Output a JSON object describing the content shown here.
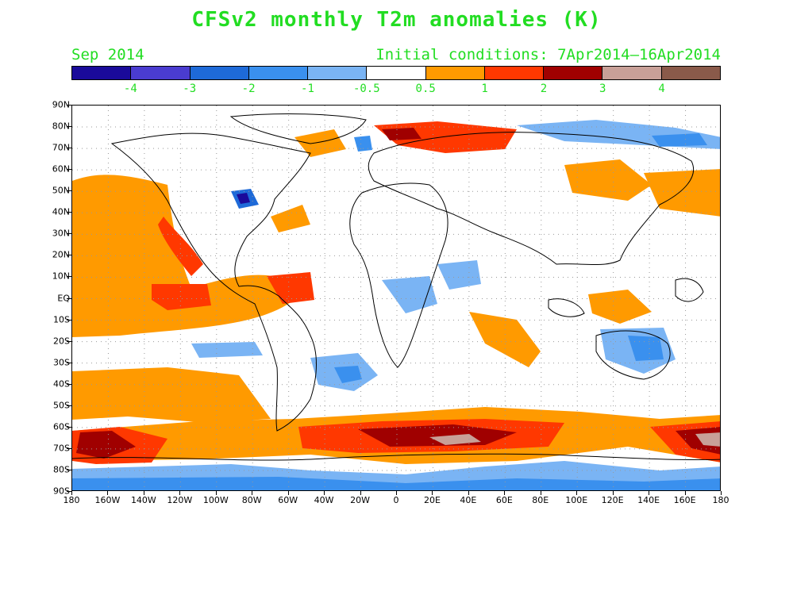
{
  "title": "CFSv2 monthly T2m anomalies (K)",
  "valid_month": "Sep 2014",
  "init": "Initial conditions: 7Apr2014–16Apr2014",
  "colorbar": {
    "colors": [
      "#1a0a9a",
      "#4a3cd0",
      "#1e6ad8",
      "#3a90ee",
      "#7ab4f4",
      "#ffffff",
      "#ff9a00",
      "#ff3800",
      "#a00000",
      "#c8a098",
      "#8a5a4a"
    ],
    "labels": [
      "-4",
      "-3",
      "-2",
      "-1",
      "-0.5",
      "0.5",
      "1",
      "2",
      "3",
      "4"
    ]
  },
  "lat_labels": [
    "90N",
    "80N",
    "70N",
    "60N",
    "50N",
    "40N",
    "30N",
    "20N",
    "10N",
    "EQ",
    "10S",
    "20S",
    "30S",
    "40S",
    "50S",
    "60S",
    "70S",
    "80S",
    "90S"
  ],
  "lon_labels": [
    "180",
    "160W",
    "140W",
    "120W",
    "100W",
    "80W",
    "60W",
    "40W",
    "20W",
    "0",
    "20E",
    "40E",
    "60E",
    "80E",
    "100E",
    "120E",
    "140E",
    "160E",
    "180"
  ]
}
